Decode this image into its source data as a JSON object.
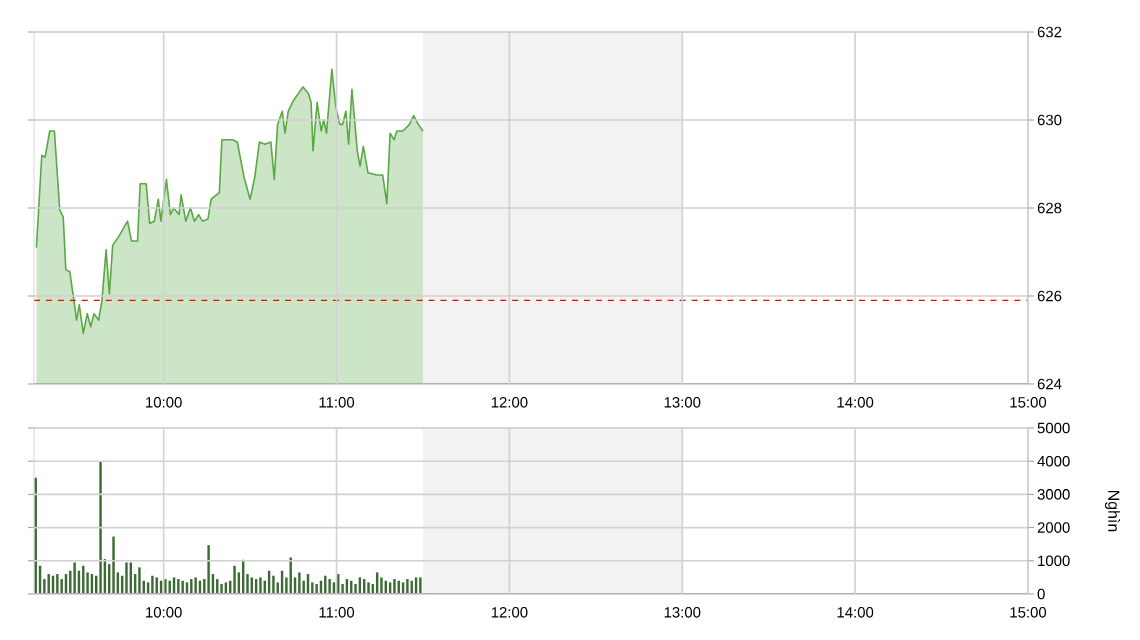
{
  "chart_data": [
    {
      "type": "area",
      "xlim": [
        9.25,
        15
      ],
      "ylim": [
        624,
        632
      ],
      "yticks": [
        624,
        626,
        628,
        630,
        632
      ],
      "xticks": [
        {
          "value": 10,
          "label": "10:00"
        },
        {
          "value": 11,
          "label": "11:00"
        },
        {
          "value": 12,
          "label": "12:00"
        },
        {
          "value": 13,
          "label": "13:00"
        },
        {
          "value": 14,
          "label": "14:00"
        },
        {
          "value": 15,
          "label": "15:00"
        }
      ],
      "grid": true,
      "ref_lines": [
        {
          "axis": "y",
          "value": 625.9,
          "color": "#ff0000",
          "line_style": "dashed"
        }
      ],
      "bands": [
        {
          "axis": "x",
          "from": 11.5,
          "to": 13,
          "color": "#f2f2f2"
        }
      ],
      "series": [
        {
          "color": "#5aa845",
          "x": [
            9.264,
            9.295,
            9.314,
            9.341,
            9.368,
            9.399,
            9.419,
            9.434,
            9.457,
            9.481,
            9.496,
            9.512,
            9.535,
            9.558,
            9.578,
            9.597,
            9.624,
            9.643,
            9.667,
            9.686,
            9.705,
            9.74,
            9.791,
            9.814,
            9.849,
            9.864,
            9.899,
            9.919,
            9.946,
            9.969,
            9.984,
            10.016,
            10.039,
            10.058,
            10.089,
            10.101,
            10.128,
            10.155,
            10.178,
            10.202,
            10.225,
            10.256,
            10.275,
            10.322,
            10.337,
            10.399,
            10.426,
            10.465,
            10.5,
            10.527,
            10.554,
            10.585,
            10.62,
            10.64,
            10.659,
            10.686,
            10.702,
            10.721,
            10.752,
            10.779,
            10.806,
            10.837,
            10.853,
            10.864,
            10.888,
            10.911,
            10.926,
            10.942,
            10.973,
            10.996,
            11.019,
            11.035,
            11.054,
            11.07,
            11.089,
            11.12,
            11.136,
            11.155,
            11.182,
            11.233,
            11.267,
            11.291,
            11.31,
            11.333,
            11.349,
            11.384,
            11.422,
            11.446,
            11.473,
            11.5
          ],
          "values": [
            627.1,
            629.2,
            629.15,
            629.75,
            629.75,
            627.95,
            627.8,
            626.6,
            626.55,
            625.9,
            625.45,
            625.8,
            625.15,
            625.6,
            625.3,
            625.6,
            625.45,
            625.9,
            627.05,
            626.05,
            627.15,
            627.35,
            627.7,
            627.25,
            627.25,
            628.55,
            628.55,
            627.65,
            627.7,
            628.2,
            627.7,
            628.65,
            627.85,
            628.0,
            627.85,
            628.3,
            627.7,
            628.0,
            627.7,
            627.85,
            627.7,
            627.75,
            628.2,
            628.35,
            629.55,
            629.55,
            629.5,
            628.7,
            628.2,
            628.7,
            629.5,
            629.45,
            629.5,
            628.65,
            629.9,
            630.2,
            629.7,
            630.2,
            630.45,
            630.6,
            630.75,
            630.6,
            630.4,
            629.3,
            630.4,
            629.75,
            630.0,
            629.7,
            631.15,
            630.3,
            629.9,
            629.9,
            630.2,
            629.45,
            630.7,
            629.3,
            628.95,
            629.4,
            628.8,
            628.75,
            628.75,
            628.1,
            629.7,
            629.55,
            629.75,
            629.75,
            629.9,
            630.1,
            629.9,
            629.75
          ]
        }
      ]
    },
    {
      "type": "bar",
      "xlim": [
        9.25,
        15
      ],
      "ylim": [
        0,
        5000
      ],
      "yticks": [
        0,
        1000,
        2000,
        3000,
        4000,
        5000
      ],
      "ylabel": "Nghìn",
      "xticks": [
        {
          "value": 10,
          "label": "10:00"
        },
        {
          "value": 11,
          "label": "11:00"
        },
        {
          "value": 12,
          "label": "12:00"
        },
        {
          "value": 13,
          "label": "13:00"
        },
        {
          "value": 14,
          "label": "14:00"
        },
        {
          "value": 15,
          "label": "15:00"
        }
      ],
      "grid": true,
      "bands": [
        {
          "axis": "x",
          "from": 11.5,
          "to": 13,
          "color": "#f2f2f2"
        }
      ],
      "series": [
        {
          "color": "#3b6a32",
          "x": [
            9.26,
            9.285,
            9.31,
            9.335,
            9.36,
            9.385,
            9.41,
            9.435,
            9.46,
            9.485,
            9.51,
            9.535,
            9.56,
            9.585,
            9.61,
            9.635,
            9.66,
            9.685,
            9.71,
            9.735,
            9.76,
            9.785,
            9.81,
            9.835,
            9.86,
            9.885,
            9.91,
            9.935,
            9.96,
            9.985,
            10.01,
            10.035,
            10.06,
            10.085,
            10.11,
            10.135,
            10.16,
            10.185,
            10.21,
            10.235,
            10.26,
            10.285,
            10.31,
            10.335,
            10.36,
            10.385,
            10.41,
            10.435,
            10.46,
            10.485,
            10.51,
            10.535,
            10.56,
            10.585,
            10.61,
            10.635,
            10.66,
            10.685,
            10.71,
            10.735,
            10.76,
            10.785,
            10.81,
            10.835,
            10.86,
            10.885,
            10.91,
            10.935,
            10.96,
            10.985,
            11.01,
            11.035,
            11.06,
            11.085,
            11.11,
            11.135,
            11.16,
            11.185,
            11.21,
            11.235,
            11.26,
            11.285,
            11.31,
            11.335,
            11.36,
            11.385,
            11.41,
            11.435,
            11.46,
            11.485
          ],
          "values": [
            3500,
            850,
            450,
            600,
            550,
            600,
            450,
            600,
            700,
            950,
            700,
            850,
            650,
            600,
            550,
            4000,
            1050,
            900,
            1730,
            650,
            550,
            950,
            950,
            600,
            800,
            400,
            350,
            550,
            500,
            400,
            450,
            400,
            500,
            450,
            400,
            350,
            450,
            500,
            400,
            450,
            1470,
            600,
            450,
            300,
            350,
            400,
            850,
            650,
            1030,
            600,
            500,
            450,
            500,
            400,
            700,
            550,
            350,
            700,
            500,
            1100,
            500,
            650,
            400,
            600,
            350,
            300,
            400,
            550,
            450,
            350,
            600,
            300,
            450,
            400,
            300,
            500,
            450,
            350,
            300,
            650,
            500,
            400,
            350,
            450,
            400,
            350,
            450,
            400,
            500,
            500
          ]
        }
      ]
    }
  ]
}
